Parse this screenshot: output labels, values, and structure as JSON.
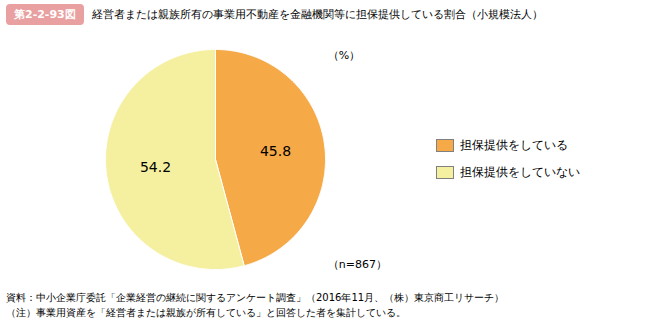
{
  "chart_data": {
    "type": "pie",
    "title": "経営者または親族所有の事業用不動産を金融機関等に担保提供している割合（小規模法人）",
    "categories": [
      "担保提供をしている",
      "担保提供をしていない"
    ],
    "values": [
      45.8,
      54.2
    ],
    "colors": [
      "#F5A947",
      "#F5F0A0"
    ],
    "data_labels": true,
    "legend": "right",
    "annotations": [
      "第2-2-93図",
      "（%）",
      "（n=867）",
      "資料：中小企業庁委託「企業経営の継続に関するアンケート調査」（2016年11月、（株）東京商工リサーチ）",
      "（注）事業用資産を「経営者または親族が所有している」と回答した者を集計している。"
    ]
  }
}
